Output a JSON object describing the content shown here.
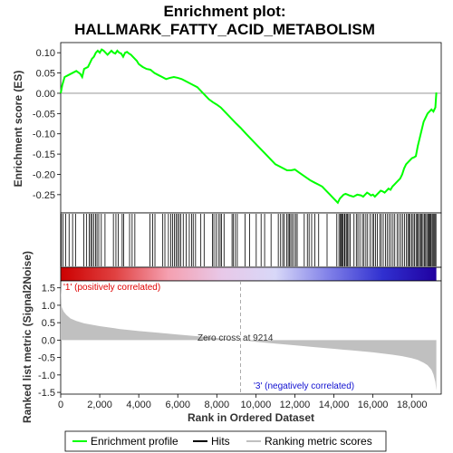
{
  "chart_data": {
    "type": "line",
    "title_line1": "Enrichment plot:",
    "title_line2": "HALLMARK_FATTY_ACID_METABOLISM",
    "es_panel": {
      "ylabel": "Enrichment score (ES)",
      "ylim": [
        -0.295,
        0.125
      ],
      "yticks": [
        0.1,
        0.05,
        0.0,
        -0.05,
        -0.1,
        -0.15,
        -0.2,
        -0.25
      ],
      "ytick_labels": [
        "0.10",
        "0.05",
        "0.00",
        "-0.05",
        "-0.10",
        "-0.15",
        "-0.20",
        "-0.25"
      ],
      "series": [
        {
          "name": "Enrichment profile",
          "color": "#00ff00",
          "x": [
            0,
            80,
            200,
            400,
            600,
            800,
            1000,
            1100,
            1200,
            1400,
            1500,
            1600,
            1700,
            1800,
            1900,
            2000,
            2100,
            2200,
            2300,
            2400,
            2600,
            2700,
            2800,
            2900,
            3000,
            3100,
            3200,
            3300,
            3400,
            3500,
            3600,
            3700,
            3800,
            3900,
            4000,
            4200,
            4400,
            4600,
            4800,
            5000,
            5200,
            5400,
            5600,
            5800,
            6000,
            6200,
            6400,
            6600,
            6800,
            7000,
            7200,
            7400,
            7600,
            7800,
            8000,
            8200,
            8400,
            8600,
            8800,
            9000,
            9214,
            9500,
            10000,
            10500,
            11000,
            11200,
            11400,
            11600,
            11800,
            12000,
            12200,
            12500,
            12800,
            13000,
            13200,
            13400,
            13600,
            13800,
            14000,
            14100,
            14200,
            14300,
            14400,
            14500,
            14600,
            14700,
            14800,
            15000,
            15200,
            15400,
            15500,
            15600,
            15700,
            15800,
            15900,
            16000,
            16100,
            16200,
            16300,
            16400,
            16500,
            16600,
            16700,
            16800,
            16900,
            17000,
            17100,
            17200,
            17300,
            17400,
            17500,
            17600,
            17700,
            17800,
            17900,
            18000,
            18100,
            18200,
            18300,
            18400,
            18500,
            18600,
            18700,
            18800,
            18900,
            19000,
            19100,
            19200,
            19250
          ],
          "y": [
            0.0,
            0.02,
            0.04,
            0.045,
            0.05,
            0.055,
            0.048,
            0.04,
            0.06,
            0.065,
            0.075,
            0.085,
            0.09,
            0.1,
            0.105,
            0.1,
            0.108,
            0.105,
            0.1,
            0.095,
            0.105,
            0.1,
            0.098,
            0.105,
            0.1,
            0.098,
            0.09,
            0.1,
            0.102,
            0.098,
            0.095,
            0.09,
            0.085,
            0.08,
            0.072,
            0.065,
            0.06,
            0.058,
            0.05,
            0.045,
            0.04,
            0.035,
            0.038,
            0.04,
            0.038,
            0.035,
            0.03,
            0.025,
            0.02,
            0.015,
            0.005,
            -0.005,
            -0.015,
            -0.022,
            -0.028,
            -0.035,
            -0.045,
            -0.055,
            -0.065,
            -0.075,
            -0.085,
            -0.1,
            -0.125,
            -0.15,
            -0.175,
            -0.18,
            -0.185,
            -0.19,
            -0.19,
            -0.188,
            -0.195,
            -0.205,
            -0.215,
            -0.22,
            -0.225,
            -0.23,
            -0.24,
            -0.25,
            -0.26,
            -0.265,
            -0.27,
            -0.26,
            -0.255,
            -0.25,
            -0.248,
            -0.25,
            -0.252,
            -0.255,
            -0.25,
            -0.252,
            -0.255,
            -0.25,
            -0.245,
            -0.248,
            -0.252,
            -0.25,
            -0.255,
            -0.25,
            -0.245,
            -0.24,
            -0.242,
            -0.245,
            -0.24,
            -0.235,
            -0.238,
            -0.23,
            -0.225,
            -0.22,
            -0.215,
            -0.21,
            -0.2,
            -0.185,
            -0.175,
            -0.17,
            -0.165,
            -0.16,
            -0.158,
            -0.155,
            -0.13,
            -0.11,
            -0.09,
            -0.07,
            -0.06,
            -0.05,
            -0.045,
            -0.04,
            -0.045,
            -0.035,
            0.002
          ]
        }
      ]
    },
    "hits_panel": {
      "legend_label": "Hits",
      "hit_positions": [
        30,
        120,
        250,
        430,
        610,
        760,
        1180,
        1330,
        1460,
        1540,
        1610,
        1700,
        1790,
        1860,
        1950,
        2080,
        2270,
        2700,
        2830,
        2950,
        3150,
        3230,
        3530,
        3660,
        3800,
        4570,
        4710,
        4830,
        5230,
        5340,
        5520,
        5640,
        5730,
        5830,
        5910,
        5990,
        6070,
        6150,
        6280,
        6430,
        6590,
        6710,
        6790,
        6910,
        7180,
        7350,
        7780,
        7850,
        7960,
        8080,
        8170,
        8240,
        8370,
        8780,
        8850,
        8950,
        9050,
        9450,
        9680,
        10020,
        10270,
        10450,
        10780,
        11150,
        11270,
        11380,
        11460,
        11580,
        11660,
        11720,
        11790,
        11870,
        11950,
        12050,
        12120,
        12480,
        12640,
        12730,
        12860,
        13020,
        13220,
        13650,
        14150,
        14260,
        14320,
        14380,
        14420,
        14470,
        14540,
        14570,
        14640,
        14700,
        14760,
        14830,
        15030,
        15150,
        15230,
        15330,
        15460,
        15540,
        15640,
        15730,
        15850,
        15970,
        16040,
        16130,
        16230,
        16350,
        16430,
        16530,
        16640,
        16730,
        16830,
        16930,
        17030,
        17120,
        17240,
        17330,
        17430,
        17520,
        17620,
        17720,
        17790,
        17850,
        17910,
        17990,
        18060,
        18130,
        18210,
        18270,
        18330,
        18390,
        18450,
        18510,
        18570,
        18640,
        18700,
        18760,
        18820,
        18870,
        18920,
        18970,
        19030,
        19080,
        19130,
        19180,
        19230
      ]
    },
    "heatmap_bar": {
      "stops": [
        "#cc0000",
        "#e04040",
        "#f5a0b0",
        "#e8c8e8",
        "#d8d8f8",
        "#8080e8",
        "#3030d0",
        "#2000a0"
      ]
    },
    "metric_panel": {
      "ylabel": "Ranked list metric (Signal2Noise)",
      "ylim": [
        -1.55,
        1.7
      ],
      "yticks": [
        1.5,
        1.0,
        0.5,
        0.0,
        -0.5,
        -1.0,
        -1.5
      ],
      "ytick_labels": [
        "1.5",
        "1.0",
        "0.5",
        "0.0",
        "-0.5",
        "-1.0",
        "-1.5"
      ],
      "legend_label": "Ranking metric scores",
      "fill_color": "#c0c0c0",
      "x": [
        0,
        50,
        150,
        300,
        500,
        800,
        1200,
        2000,
        3000,
        4000,
        5000,
        6000,
        7000,
        8000,
        9214,
        10000,
        11000,
        12000,
        13000,
        14000,
        15000,
        16000,
        17000,
        17500,
        18000,
        18300,
        18600,
        18800,
        19000,
        19100,
        19200,
        19250
      ],
      "y": [
        1.6,
        0.95,
        0.82,
        0.72,
        0.62,
        0.55,
        0.48,
        0.4,
        0.32,
        0.26,
        0.21,
        0.16,
        0.11,
        0.06,
        0.0,
        -0.05,
        -0.1,
        -0.15,
        -0.2,
        -0.25,
        -0.3,
        -0.35,
        -0.42,
        -0.46,
        -0.52,
        -0.57,
        -0.65,
        -0.72,
        -0.85,
        -0.98,
        -1.2,
        -1.45
      ]
    },
    "xaxis": {
      "label": "Rank in Ordered Dataset",
      "xlim": [
        0,
        19500
      ],
      "ticks": [
        0,
        2000,
        4000,
        6000,
        8000,
        10000,
        12000,
        14000,
        16000,
        18000
      ],
      "tick_labels": [
        "0",
        "2,000",
        "4,000",
        "6,000",
        "8,000",
        "10,000",
        "12,000",
        "14,000",
        "16,000",
        "18,000"
      ],
      "data_max": 19250
    },
    "annotations": {
      "pos_label": "'1' (positively correlated)",
      "pos_color": "#e00000",
      "neg_label": "'3' (negatively correlated)",
      "neg_color": "#1010d0",
      "zero_cross_label": "Zero cross at 9214",
      "zero_cross_x": 9214
    },
    "legend": {
      "items": [
        {
          "label": "Enrichment profile",
          "color": "#00ff00"
        },
        {
          "label": "Hits",
          "color": "#000000"
        },
        {
          "label": "Ranking metric scores",
          "color": "#c0c0c0"
        }
      ]
    }
  }
}
